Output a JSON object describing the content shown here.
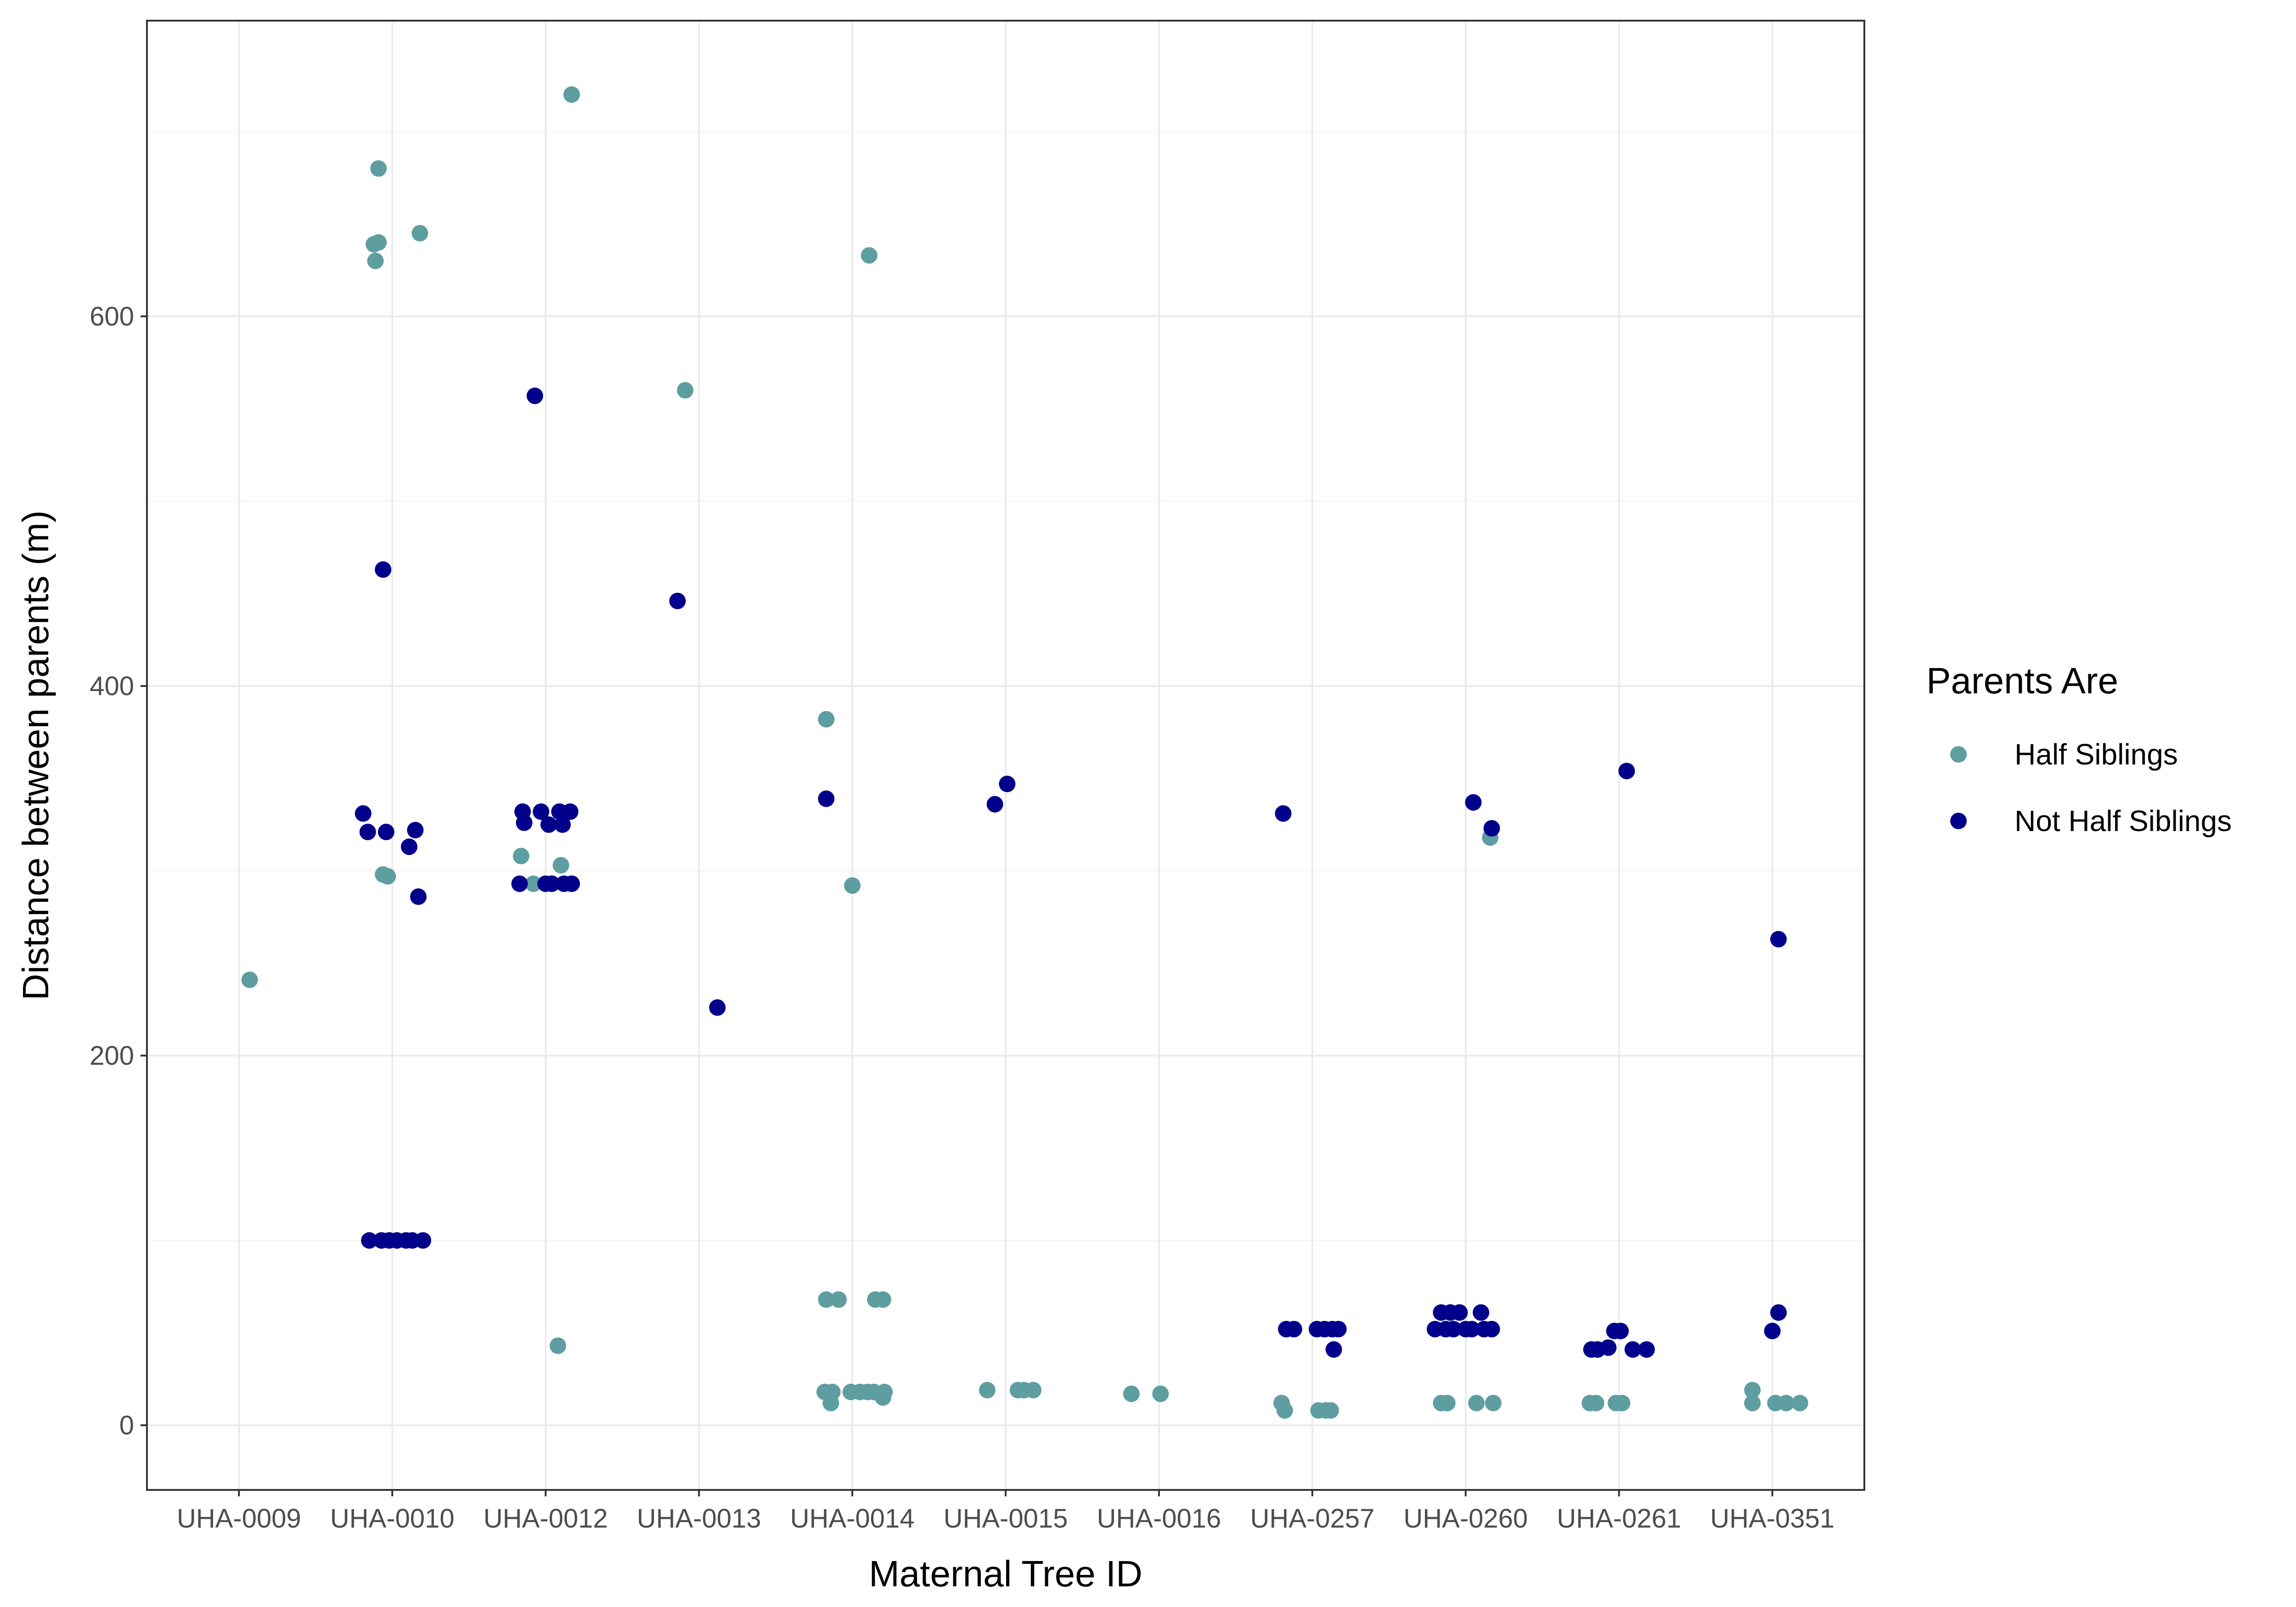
{
  "chart_data": {
    "type": "scatter",
    "title": "",
    "xlabel": "Maternal Tree ID",
    "ylabel": "Distance between parents (m)",
    "categories": [
      "UHA-0009",
      "UHA-0010",
      "UHA-0012",
      "UHA-0013",
      "UHA-0014",
      "UHA-0015",
      "UHA-0016",
      "UHA-0257",
      "UHA-0260",
      "UHA-0261",
      "UHA-0351"
    ],
    "ylim": [
      -35,
      760
    ],
    "yticks": [
      0,
      200,
      400,
      600
    ],
    "grid": true,
    "legend": {
      "title": "Parents Are",
      "position": "right"
    },
    "series": [
      {
        "name": "Half Siblings",
        "color": "#5f9ea0",
        "points": [
          {
            "x": "UHA-0009",
            "y": 241,
            "jitter": 0.07
          },
          {
            "x": "UHA-0010",
            "y": 680,
            "jitter": -0.09
          },
          {
            "x": "UHA-0010",
            "y": 639,
            "jitter": -0.12
          },
          {
            "x": "UHA-0010",
            "y": 640,
            "jitter": -0.09
          },
          {
            "x": "UHA-0010",
            "y": 630,
            "jitter": -0.11
          },
          {
            "x": "UHA-0010",
            "y": 645,
            "jitter": 0.18
          },
          {
            "x": "UHA-0010",
            "y": 298,
            "jitter": -0.06
          },
          {
            "x": "UHA-0010",
            "y": 297,
            "jitter": -0.03
          },
          {
            "x": "UHA-0012",
            "y": 720,
            "jitter": 0.17
          },
          {
            "x": "UHA-0012",
            "y": 308,
            "jitter": -0.16
          },
          {
            "x": "UHA-0012",
            "y": 303,
            "jitter": 0.1
          },
          {
            "x": "UHA-0012",
            "y": 293,
            "jitter": -0.08
          },
          {
            "x": "UHA-0012",
            "y": 43,
            "jitter": 0.08
          },
          {
            "x": "UHA-0013",
            "y": 560,
            "jitter": -0.09
          },
          {
            "x": "UHA-0014",
            "y": 382,
            "jitter": -0.17
          },
          {
            "x": "UHA-0014",
            "y": 292,
            "jitter": 0.0
          },
          {
            "x": "UHA-0014",
            "y": 633,
            "jitter": 0.11
          },
          {
            "x": "UHA-0014",
            "y": 68,
            "jitter": -0.17
          },
          {
            "x": "UHA-0014",
            "y": 68,
            "jitter": -0.09
          },
          {
            "x": "UHA-0014",
            "y": 68,
            "jitter": 0.15
          },
          {
            "x": "UHA-0014",
            "y": 68,
            "jitter": 0.2
          },
          {
            "x": "UHA-0014",
            "y": 18,
            "jitter": -0.18
          },
          {
            "x": "UHA-0014",
            "y": 18,
            "jitter": -0.13
          },
          {
            "x": "UHA-0014",
            "y": 12,
            "jitter": -0.14
          },
          {
            "x": "UHA-0014",
            "y": 18,
            "jitter": -0.01
          },
          {
            "x": "UHA-0014",
            "y": 18,
            "jitter": 0.05
          },
          {
            "x": "UHA-0014",
            "y": 18,
            "jitter": 0.1
          },
          {
            "x": "UHA-0014",
            "y": 18,
            "jitter": 0.14
          },
          {
            "x": "UHA-0014",
            "y": 15,
            "jitter": 0.2
          },
          {
            "x": "UHA-0014",
            "y": 18,
            "jitter": 0.21
          },
          {
            "x": "UHA-0015",
            "y": 19,
            "jitter": -0.12
          },
          {
            "x": "UHA-0015",
            "y": 19,
            "jitter": 0.08
          },
          {
            "x": "UHA-0015",
            "y": 19,
            "jitter": 0.12
          },
          {
            "x": "UHA-0015",
            "y": 19,
            "jitter": 0.18
          },
          {
            "x": "UHA-0016",
            "y": 17,
            "jitter": -0.18
          },
          {
            "x": "UHA-0016",
            "y": 17,
            "jitter": 0.01
          },
          {
            "x": "UHA-0257",
            "y": 12,
            "jitter": -0.2
          },
          {
            "x": "UHA-0257",
            "y": 8,
            "jitter": -0.18
          },
          {
            "x": "UHA-0257",
            "y": 8,
            "jitter": 0.04
          },
          {
            "x": "UHA-0257",
            "y": 8,
            "jitter": 0.09
          },
          {
            "x": "UHA-0257",
            "y": 8,
            "jitter": 0.12
          },
          {
            "x": "UHA-0260",
            "y": 318,
            "jitter": 0.16
          },
          {
            "x": "UHA-0260",
            "y": 12,
            "jitter": -0.16
          },
          {
            "x": "UHA-0260",
            "y": 12,
            "jitter": -0.12
          },
          {
            "x": "UHA-0260",
            "y": 12,
            "jitter": 0.07
          },
          {
            "x": "UHA-0260",
            "y": 12,
            "jitter": 0.18
          },
          {
            "x": "UHA-0261",
            "y": 12,
            "jitter": -0.19
          },
          {
            "x": "UHA-0261",
            "y": 12,
            "jitter": -0.15
          },
          {
            "x": "UHA-0261",
            "y": 12,
            "jitter": -0.02
          },
          {
            "x": "UHA-0261",
            "y": 12,
            "jitter": 0.02
          },
          {
            "x": "UHA-0351",
            "y": 19,
            "jitter": -0.13
          },
          {
            "x": "UHA-0351",
            "y": 12,
            "jitter": -0.13
          },
          {
            "x": "UHA-0351",
            "y": 12,
            "jitter": 0.02
          },
          {
            "x": "UHA-0351",
            "y": 12,
            "jitter": 0.09
          },
          {
            "x": "UHA-0351",
            "y": 12,
            "jitter": 0.18
          }
        ]
      },
      {
        "name": "Not Half Siblings",
        "color": "#00008b",
        "points": [
          {
            "x": "UHA-0010",
            "y": 463,
            "jitter": -0.06
          },
          {
            "x": "UHA-0010",
            "y": 331,
            "jitter": -0.19
          },
          {
            "x": "UHA-0010",
            "y": 321,
            "jitter": -0.16
          },
          {
            "x": "UHA-0010",
            "y": 321,
            "jitter": -0.04
          },
          {
            "x": "UHA-0010",
            "y": 313,
            "jitter": 0.11
          },
          {
            "x": "UHA-0010",
            "y": 322,
            "jitter": 0.15
          },
          {
            "x": "UHA-0010",
            "y": 286,
            "jitter": 0.17
          },
          {
            "x": "UHA-0010",
            "y": 100,
            "jitter": -0.15
          },
          {
            "x": "UHA-0010",
            "y": 100,
            "jitter": -0.07
          },
          {
            "x": "UHA-0010",
            "y": 100,
            "jitter": -0.02
          },
          {
            "x": "UHA-0010",
            "y": 100,
            "jitter": 0.03
          },
          {
            "x": "UHA-0010",
            "y": 100,
            "jitter": 0.09
          },
          {
            "x": "UHA-0010",
            "y": 100,
            "jitter": 0.13
          },
          {
            "x": "UHA-0010",
            "y": 100,
            "jitter": 0.2
          },
          {
            "x": "UHA-0012",
            "y": 557,
            "jitter": -0.07
          },
          {
            "x": "UHA-0012",
            "y": 332,
            "jitter": -0.15
          },
          {
            "x": "UHA-0012",
            "y": 326,
            "jitter": -0.14
          },
          {
            "x": "UHA-0012",
            "y": 332,
            "jitter": -0.03
          },
          {
            "x": "UHA-0012",
            "y": 325,
            "jitter": 0.02
          },
          {
            "x": "UHA-0012",
            "y": 332,
            "jitter": 0.09
          },
          {
            "x": "UHA-0012",
            "y": 325,
            "jitter": 0.11
          },
          {
            "x": "UHA-0012",
            "y": 332,
            "jitter": 0.16
          },
          {
            "x": "UHA-0012",
            "y": 293,
            "jitter": -0.17
          },
          {
            "x": "UHA-0012",
            "y": 293,
            "jitter": 0.0
          },
          {
            "x": "UHA-0012",
            "y": 293,
            "jitter": 0.04
          },
          {
            "x": "UHA-0012",
            "y": 293,
            "jitter": 0.12
          },
          {
            "x": "UHA-0012",
            "y": 293,
            "jitter": 0.17
          },
          {
            "x": "UHA-0013",
            "y": 446,
            "jitter": -0.14
          },
          {
            "x": "UHA-0013",
            "y": 226,
            "jitter": 0.12
          },
          {
            "x": "UHA-0014",
            "y": 339,
            "jitter": -0.17
          },
          {
            "x": "UHA-0015",
            "y": 336,
            "jitter": -0.07
          },
          {
            "x": "UHA-0015",
            "y": 347,
            "jitter": 0.01
          },
          {
            "x": "UHA-0257",
            "y": 331,
            "jitter": -0.19
          },
          {
            "x": "UHA-0257",
            "y": 52,
            "jitter": -0.17
          },
          {
            "x": "UHA-0257",
            "y": 52,
            "jitter": -0.12
          },
          {
            "x": "UHA-0257",
            "y": 52,
            "jitter": 0.03
          },
          {
            "x": "UHA-0257",
            "y": 52,
            "jitter": 0.08
          },
          {
            "x": "UHA-0257",
            "y": 52,
            "jitter": 0.13
          },
          {
            "x": "UHA-0257",
            "y": 52,
            "jitter": 0.17
          },
          {
            "x": "UHA-0257",
            "y": 41,
            "jitter": 0.14
          },
          {
            "x": "UHA-0260",
            "y": 337,
            "jitter": 0.05
          },
          {
            "x": "UHA-0260",
            "y": 323,
            "jitter": 0.17
          },
          {
            "x": "UHA-0260",
            "y": 61,
            "jitter": -0.16
          },
          {
            "x": "UHA-0260",
            "y": 61,
            "jitter": -0.1
          },
          {
            "x": "UHA-0260",
            "y": 61,
            "jitter": -0.04
          },
          {
            "x": "UHA-0260",
            "y": 61,
            "jitter": 0.1
          },
          {
            "x": "UHA-0260",
            "y": 52,
            "jitter": -0.2
          },
          {
            "x": "UHA-0260",
            "y": 52,
            "jitter": -0.13
          },
          {
            "x": "UHA-0260",
            "y": 52,
            "jitter": -0.08
          },
          {
            "x": "UHA-0260",
            "y": 52,
            "jitter": 0.0
          },
          {
            "x": "UHA-0260",
            "y": 52,
            "jitter": 0.04
          },
          {
            "x": "UHA-0260",
            "y": 52,
            "jitter": 0.12
          },
          {
            "x": "UHA-0260",
            "y": 52,
            "jitter": 0.17
          },
          {
            "x": "UHA-0261",
            "y": 354,
            "jitter": 0.05
          },
          {
            "x": "UHA-0261",
            "y": 41,
            "jitter": -0.18
          },
          {
            "x": "UHA-0261",
            "y": 41,
            "jitter": -0.14
          },
          {
            "x": "UHA-0261",
            "y": 42,
            "jitter": -0.07
          },
          {
            "x": "UHA-0261",
            "y": 51,
            "jitter": -0.03
          },
          {
            "x": "UHA-0261",
            "y": 51,
            "jitter": 0.01
          },
          {
            "x": "UHA-0261",
            "y": 41,
            "jitter": 0.09
          },
          {
            "x": "UHA-0261",
            "y": 41,
            "jitter": 0.18
          },
          {
            "x": "UHA-0351",
            "y": 263,
            "jitter": 0.04
          },
          {
            "x": "UHA-0351",
            "y": 61,
            "jitter": 0.04
          },
          {
            "x": "UHA-0351",
            "y": 51,
            "jitter": 0.0
          }
        ]
      }
    ]
  }
}
